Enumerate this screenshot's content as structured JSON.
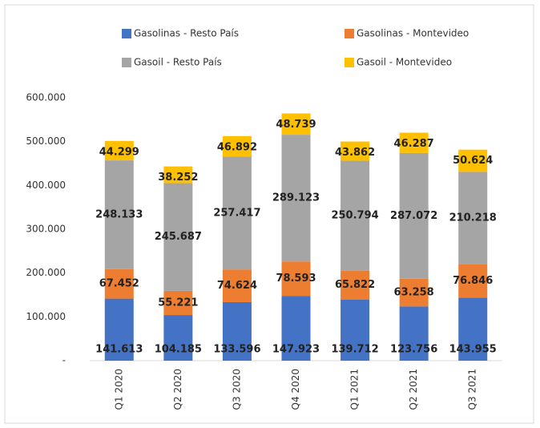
{
  "chart_data": {
    "type": "stacked_bar",
    "categories": [
      "Q1 2020",
      "Q2 2020",
      "Q3 2020",
      "Q4 2020",
      "Q1 2021",
      "Q2 2021",
      "Q3 2021"
    ],
    "series": [
      {
        "name": "Gasolinas - Resto País",
        "color": "#4472c4",
        "values": [
          141613,
          104185,
          133596,
          147923,
          139712,
          123756,
          143955
        ],
        "value_labels": [
          "141.613",
          "104.185",
          "133.596",
          "147.923",
          "139.712",
          "123.756",
          "143.955"
        ]
      },
      {
        "name": "Gasolinas - Montevideo",
        "color": "#ed7d31",
        "values": [
          67452,
          55221,
          74624,
          78593,
          65822,
          63258,
          76846
        ],
        "value_labels": [
          "67.452",
          "55.221",
          "74.624",
          "78.593",
          "65.822",
          "63.258",
          "76.846"
        ]
      },
      {
        "name": "Gasoil - Resto País",
        "color": "#a5a5a5",
        "values": [
          248133,
          245687,
          257417,
          289123,
          250794,
          287072,
          210218
        ],
        "value_labels": [
          "248.133",
          "245.687",
          "257.417",
          "289.123",
          "250.794",
          "287.072",
          "210.218"
        ]
      },
      {
        "name": "Gasoil - Montevideo",
        "color": "#ffc000",
        "values": [
          44299,
          38252,
          46892,
          48739,
          43862,
          46287,
          50624
        ],
        "value_labels": [
          "44.299",
          "38.252",
          "46.892",
          "48.739",
          "43.862",
          "46.287",
          "50.624"
        ]
      }
    ],
    "ylim": [
      0,
      600000
    ],
    "yticks": [
      {
        "value": 0,
        "label": "-"
      },
      {
        "value": 100000,
        "label": "100.000"
      },
      {
        "value": 200000,
        "label": "200.000"
      },
      {
        "value": 300000,
        "label": "300.000"
      },
      {
        "value": 400000,
        "label": "400.000"
      },
      {
        "value": 500000,
        "label": "500.000"
      },
      {
        "value": 600000,
        "label": "600.000"
      }
    ],
    "legend": "top"
  }
}
